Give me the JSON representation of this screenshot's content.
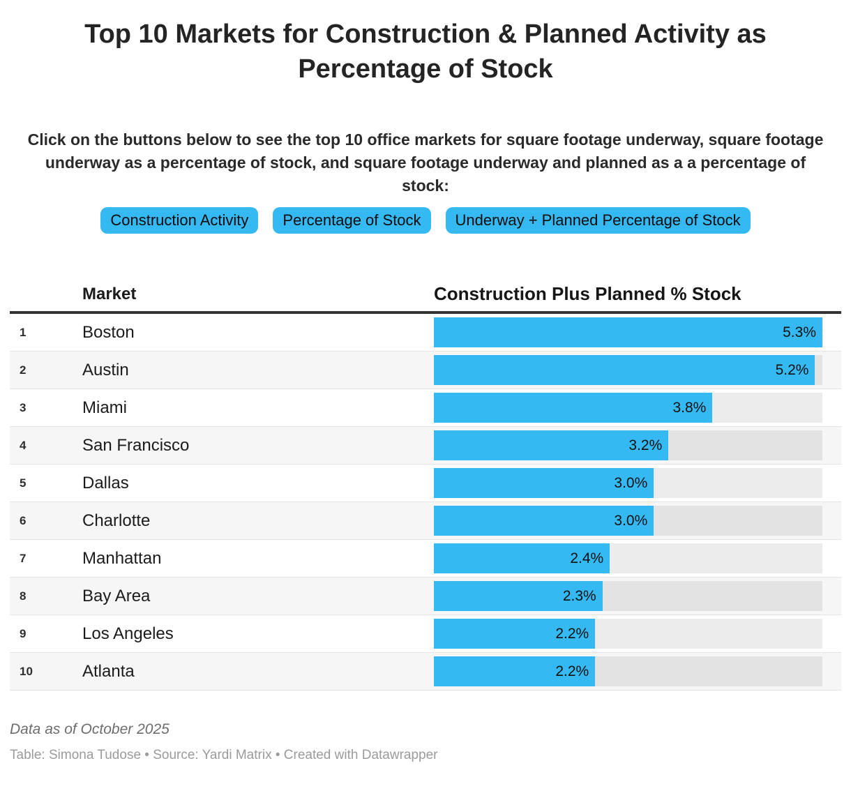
{
  "title": "Top 10 Markets for Construction & Planned Activity as Percentage of Stock",
  "description": "Click on the buttons below to see the top 10 office markets for square footage underway, square footage underway as a percentage of stock, and square footage underway and planned as a a percentage of stock:",
  "buttons": [
    {
      "label": "Construction Activity"
    },
    {
      "label": "Percentage of Stock"
    },
    {
      "label": "Underway + Planned Percentage of Stock"
    }
  ],
  "table": {
    "columns": [
      "Market",
      "Construction Plus Planned % Stock"
    ],
    "rows": [
      {
        "rank": "1",
        "market": "Boston",
        "value": 5.3,
        "label": "5.3%"
      },
      {
        "rank": "2",
        "market": "Austin",
        "value": 5.2,
        "label": "5.2%"
      },
      {
        "rank": "3",
        "market": "Miami",
        "value": 3.8,
        "label": "3.8%"
      },
      {
        "rank": "4",
        "market": "San Francisco",
        "value": 3.2,
        "label": "3.2%"
      },
      {
        "rank": "5",
        "market": "Dallas",
        "value": 3.0,
        "label": "3.0%"
      },
      {
        "rank": "6",
        "market": "Charlotte",
        "value": 3.0,
        "label": "3.0%"
      },
      {
        "rank": "7",
        "market": "Manhattan",
        "value": 2.4,
        "label": "2.4%"
      },
      {
        "rank": "8",
        "market": "Bay Area",
        "value": 2.3,
        "label": "2.3%"
      },
      {
        "rank": "9",
        "market": "Los Angeles",
        "value": 2.2,
        "label": "2.2%"
      },
      {
        "rank": "10",
        "market": "Atlanta",
        "value": 2.2,
        "label": "2.2%"
      }
    ]
  },
  "chart_data": {
    "type": "bar",
    "orientation": "horizontal",
    "title": "Top 10 Markets for Construction & Planned Activity as Percentage of Stock",
    "series_label": "Construction Plus Planned % Stock",
    "categories": [
      "Boston",
      "Austin",
      "Miami",
      "San Francisco",
      "Dallas",
      "Charlotte",
      "Manhattan",
      "Bay Area",
      "Los Angeles",
      "Atlanta"
    ],
    "values": [
      5.3,
      5.2,
      3.8,
      3.2,
      3.0,
      3.0,
      2.4,
      2.3,
      2.2,
      2.2
    ],
    "value_labels": [
      "5.3%",
      "5.2%",
      "3.8%",
      "3.2%",
      "3.0%",
      "3.0%",
      "2.4%",
      "2.3%",
      "2.2%",
      "2.2%"
    ],
    "xlim": [
      0,
      5.3
    ],
    "grid": false,
    "legend": false
  },
  "footer": {
    "note": "Data as of October 2025",
    "byline": "Table: Simona Tudose • Source: Yardi Matrix • Created with Datawrapper"
  },
  "colors": {
    "accent": "#35b9f3",
    "row_alt": "#f6f6f6",
    "bar_track": "#ebebeb",
    "header_rule": "#333333",
    "note_text": "#6d6d6d",
    "byline_text": "#9b9b9b"
  }
}
